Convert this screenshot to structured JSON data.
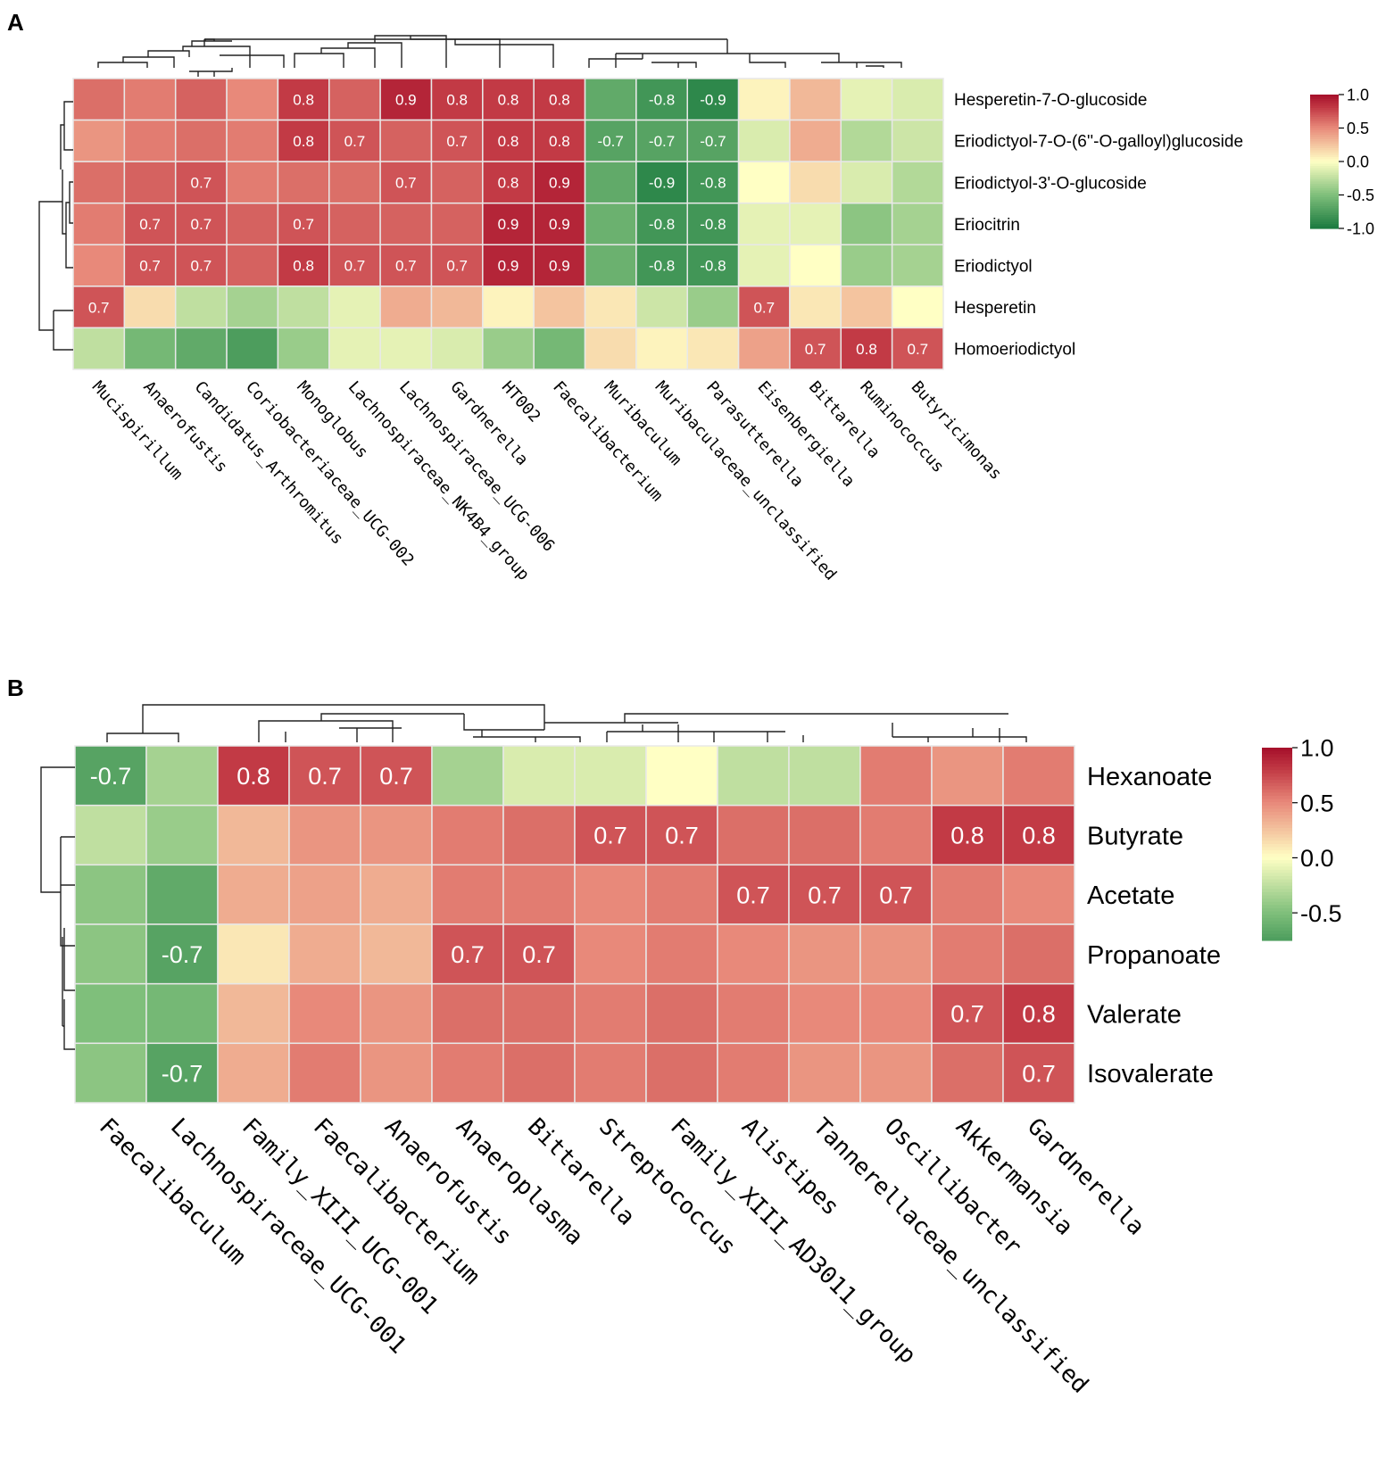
{
  "colors": {
    "neg": "#1a7a3f",
    "mid": "#ffffc4",
    "pos": "#a50f2a",
    "cell_border": "#e8e8e8"
  },
  "chart_data": [
    {
      "panel": "A",
      "type": "heatmap",
      "rows": [
        "Hesperetin-7-O-glucoside",
        "Eriodictyol-7-O-(6''-O-galloyl)glucoside",
        "Eriodictyol-3'-O-glucoside",
        "Eriocitrin",
        "Eriodictyol",
        "Hesperetin",
        "Homoeriodictyol"
      ],
      "columns": [
        "Mucispirillum",
        "Anaerofustis",
        "Candidatus_Arthromitus",
        "Coriobacteriaceae_UCG-002",
        "Monoglobus",
        "Lachnospiraceae_NK4B4_group",
        "Lachnospiraceae_UCG-006",
        "Gardnerella",
        "HT002",
        "Faecalibacterium",
        "Muribaculum",
        "Muribaculaceae_unclassified",
        "Parasutterella",
        "Eisenbergiella",
        "Bittarella",
        "Ruminococcus",
        "Butyricimonas"
      ],
      "values": [
        [
          0.6,
          0.55,
          0.65,
          0.5,
          0.8,
          0.65,
          0.9,
          0.8,
          0.8,
          0.8,
          -0.65,
          -0.8,
          -0.9,
          0.05,
          0.3,
          -0.1,
          -0.15
        ],
        [
          0.45,
          0.55,
          0.6,
          0.55,
          0.8,
          0.7,
          0.65,
          0.7,
          0.8,
          0.8,
          -0.7,
          -0.7,
          -0.7,
          -0.15,
          0.35,
          -0.3,
          -0.2
        ],
        [
          0.6,
          0.65,
          0.7,
          0.55,
          0.6,
          0.6,
          0.7,
          0.65,
          0.8,
          0.9,
          -0.65,
          -0.9,
          -0.8,
          0.0,
          0.15,
          -0.15,
          -0.3
        ],
        [
          0.55,
          0.7,
          0.7,
          0.65,
          0.7,
          0.65,
          0.65,
          0.65,
          0.9,
          0.9,
          -0.6,
          -0.8,
          -0.8,
          -0.1,
          -0.1,
          -0.45,
          -0.35
        ],
        [
          0.5,
          0.7,
          0.7,
          0.65,
          0.8,
          0.7,
          0.7,
          0.7,
          0.9,
          0.9,
          -0.6,
          -0.8,
          -0.8,
          -0.1,
          0.0,
          -0.4,
          -0.35
        ],
        [
          0.7,
          0.15,
          -0.25,
          -0.35,
          -0.25,
          -0.1,
          0.35,
          0.3,
          0.05,
          0.25,
          0.1,
          -0.2,
          -0.4,
          0.7,
          0.1,
          0.25,
          0.0
        ],
        [
          -0.25,
          -0.55,
          -0.65,
          -0.75,
          -0.4,
          -0.1,
          -0.1,
          -0.15,
          -0.4,
          -0.55,
          0.15,
          0.05,
          0.1,
          0.4,
          0.7,
          0.8,
          0.7
        ]
      ],
      "labels": [
        [
          "",
          "",
          "",
          "",
          "0.8",
          "",
          "0.9",
          "0.8",
          "0.8",
          "0.8",
          "",
          "-0.8",
          "-0.9",
          "",
          "",
          "",
          ""
        ],
        [
          "",
          "",
          "",
          "",
          "0.8",
          "0.7",
          "",
          "0.7",
          "0.8",
          "0.8",
          "-0.7",
          "-0.7",
          "-0.7",
          "",
          "",
          "",
          ""
        ],
        [
          "",
          "",
          "0.7",
          "",
          "",
          "",
          "0.7",
          "",
          "0.8",
          "0.9",
          "",
          "-0.9",
          "-0.8",
          "",
          "",
          "",
          ""
        ],
        [
          "",
          "0.7",
          "0.7",
          "",
          "0.7",
          "",
          "",
          "",
          "0.9",
          "0.9",
          "",
          "-0.8",
          "-0.8",
          "",
          "",
          "",
          ""
        ],
        [
          "",
          "0.7",
          "0.7",
          "",
          "0.8",
          "0.7",
          "0.7",
          "0.7",
          "0.9",
          "0.9",
          "",
          "-0.8",
          "-0.8",
          "",
          "",
          "",
          ""
        ],
        [
          "0.7",
          "",
          "",
          "",
          "",
          "",
          "",
          "",
          "",
          "",
          "",
          "",
          "",
          "0.7",
          "",
          "",
          ""
        ],
        [
          "",
          "",
          "",
          "",
          "",
          "",
          "",
          "",
          "",
          "",
          "",
          "",
          "",
          "",
          "0.7",
          "0.8",
          "0.7"
        ]
      ],
      "colorbar": {
        "range": [
          -1.0,
          1.0
        ],
        "ticks": [
          "1.0",
          "0.5",
          "0.0",
          "-0.5",
          "-1.0"
        ]
      }
    },
    {
      "panel": "B",
      "type": "heatmap",
      "rows": [
        "Hexanoate",
        "Butyrate",
        "Acetate",
        "Propanoate",
        "Valerate",
        "Isovalerate"
      ],
      "columns": [
        "Faecalibaculum",
        "Lachnospiraceae_UCG-001",
        "Family_XIII_UCG-001",
        "Faecalibacterium",
        "Anaerofustis",
        "Anaeroplasma",
        "Bittarella",
        "Streptococcus",
        "Family_XIII_AD3011_group",
        "Alistipes",
        "Tannerellaceae_unclassified",
        "Oscillibacter",
        "Akkermansia",
        "Gardnerella"
      ],
      "values": [
        [
          -0.7,
          -0.35,
          0.8,
          0.7,
          0.7,
          -0.35,
          -0.15,
          -0.15,
          0.0,
          -0.25,
          -0.25,
          0.55,
          0.45,
          0.55
        ],
        [
          -0.25,
          -0.4,
          0.3,
          0.45,
          0.45,
          0.55,
          0.6,
          0.7,
          0.7,
          0.6,
          0.6,
          0.55,
          0.8,
          0.8
        ],
        [
          -0.45,
          -0.65,
          0.35,
          0.4,
          0.35,
          0.55,
          0.55,
          0.5,
          0.55,
          0.7,
          0.7,
          0.7,
          0.55,
          0.5
        ],
        [
          -0.45,
          -0.7,
          0.1,
          0.35,
          0.3,
          0.7,
          0.7,
          0.5,
          0.55,
          0.5,
          0.45,
          0.45,
          0.55,
          0.6
        ],
        [
          -0.5,
          -0.55,
          0.3,
          0.5,
          0.45,
          0.6,
          0.6,
          0.55,
          0.6,
          0.55,
          0.5,
          0.5,
          0.7,
          0.8
        ],
        [
          -0.45,
          -0.7,
          0.35,
          0.55,
          0.45,
          0.55,
          0.6,
          0.55,
          0.6,
          0.55,
          0.45,
          0.45,
          0.6,
          0.7
        ]
      ],
      "labels": [
        [
          "-0.7",
          "",
          "0.8",
          "0.7",
          "0.7",
          "",
          "",
          "",
          "",
          "",
          "",
          "",
          "",
          ""
        ],
        [
          "",
          "",
          "",
          "",
          "",
          "",
          "",
          "0.7",
          "0.7",
          "",
          "",
          "",
          "0.8",
          "0.8"
        ],
        [
          "",
          "",
          "",
          "",
          "",
          "",
          "",
          "",
          "",
          "0.7",
          "0.7",
          "0.7",
          "",
          ""
        ],
        [
          "",
          "-0.7",
          "",
          "",
          "",
          "0.7",
          "0.7",
          "",
          "",
          "",
          "",
          "",
          "",
          ""
        ],
        [
          "",
          "",
          "",
          "",
          "",
          "",
          "",
          "",
          "",
          "",
          "",
          "",
          "0.7",
          "0.8"
        ],
        [
          "",
          "-0.7",
          "",
          "",
          "",
          "",
          "",
          "",
          "",
          "",
          "",
          "",
          "",
          "0.7"
        ]
      ],
      "colorbar": {
        "range": [
          -0.75,
          1.0
        ],
        "ticks": [
          "1.0",
          "0.5",
          "0.0",
          "-0.5"
        ]
      }
    }
  ]
}
